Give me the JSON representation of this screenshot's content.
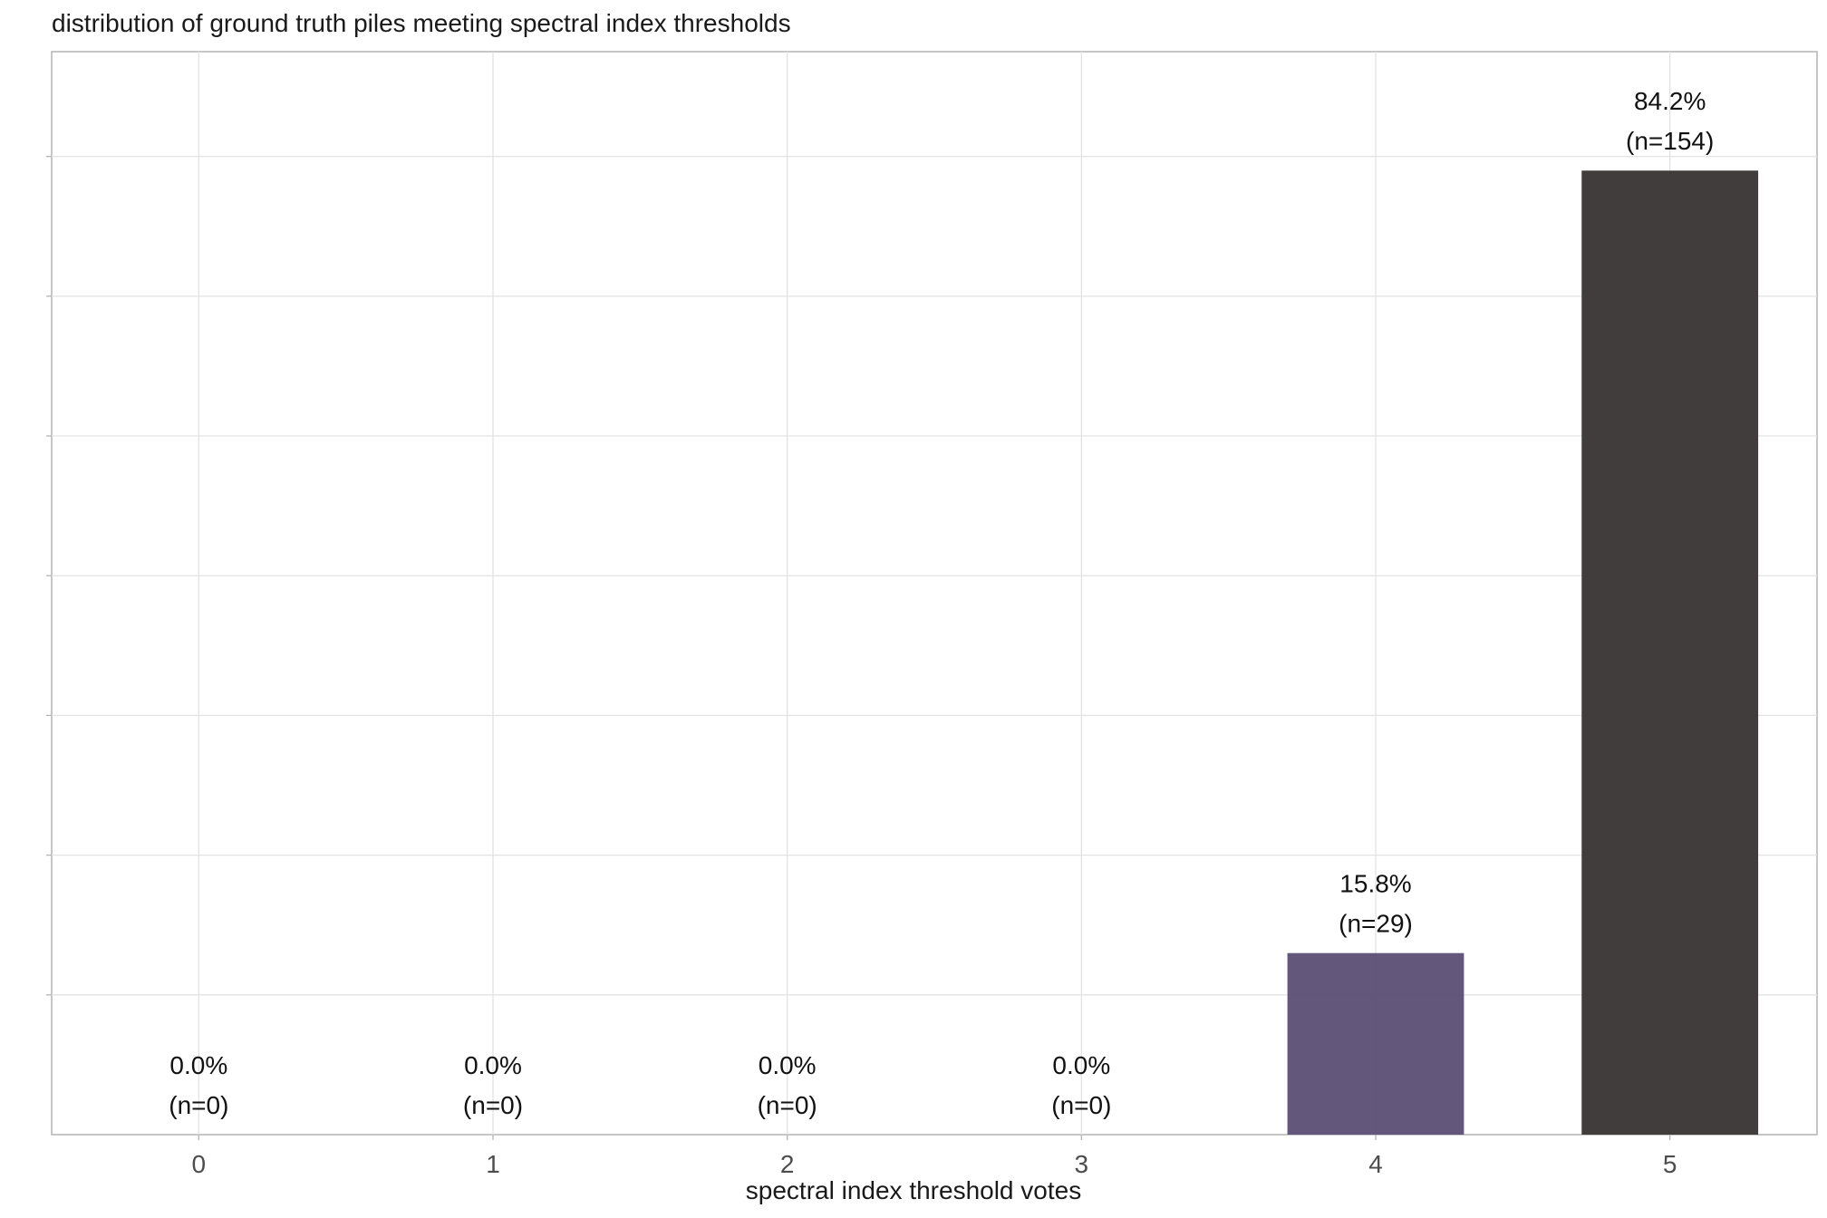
{
  "chart_data": {
    "type": "bar",
    "title": "distribution of ground truth piles meeting spectral index thresholds",
    "xlabel": "spectral index threshold votes",
    "ylabel": "",
    "categories": [
      "0",
      "1",
      "2",
      "3",
      "4",
      "5"
    ],
    "values": [
      0,
      0,
      0,
      0,
      29,
      154
    ],
    "percent_labels": [
      "0.0%",
      "0.0%",
      "0.0%",
      "0.0%",
      "15.8%",
      "84.2%"
    ],
    "count_labels": [
      "(n=0)",
      "(n=0)",
      "(n=0)",
      "(n=0)",
      "(n=29)",
      "(n=154)"
    ],
    "ylim": [
      0,
      173
    ],
    "grid": true,
    "colors": [
      "#5b4e74",
      "#5b4e74",
      "#5b4e74",
      "#5b4e74",
      "#5b4e74",
      "#383333"
    ]
  }
}
